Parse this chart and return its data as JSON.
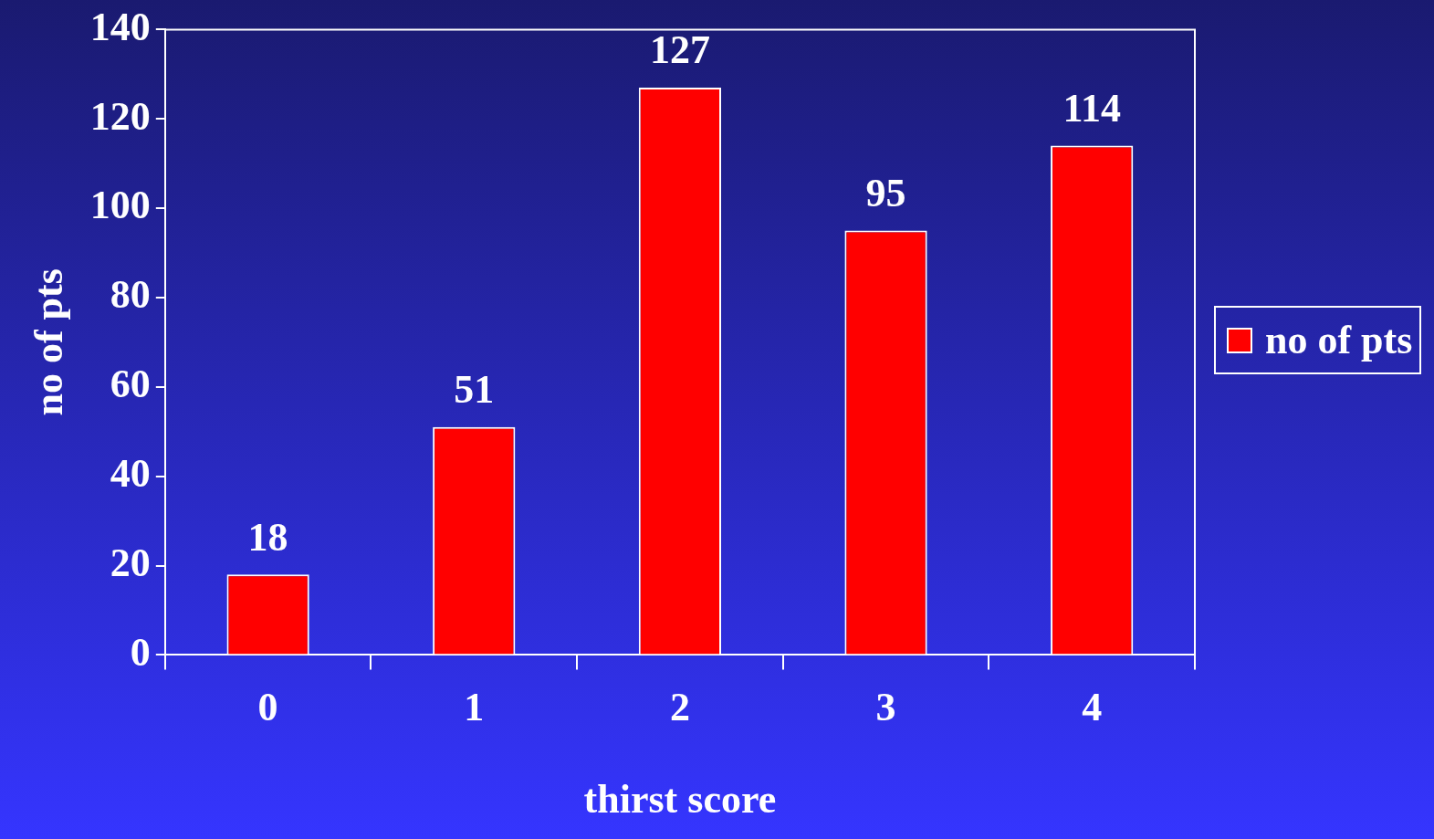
{
  "chart_data": {
    "type": "bar",
    "xlabel": "thirst score",
    "ylabel": "no of pts",
    "categories": [
      "0",
      "1",
      "2",
      "3",
      "4"
    ],
    "series": [
      {
        "name": "no of pts",
        "color": "#ff0000",
        "values": [
          18,
          51,
          127,
          95,
          114
        ]
      }
    ],
    "ylim": [
      0,
      140
    ],
    "yticks": [
      0,
      20,
      40,
      60,
      80,
      100,
      120,
      140
    ],
    "grid": false,
    "legend": "right",
    "data_labels": true
  }
}
